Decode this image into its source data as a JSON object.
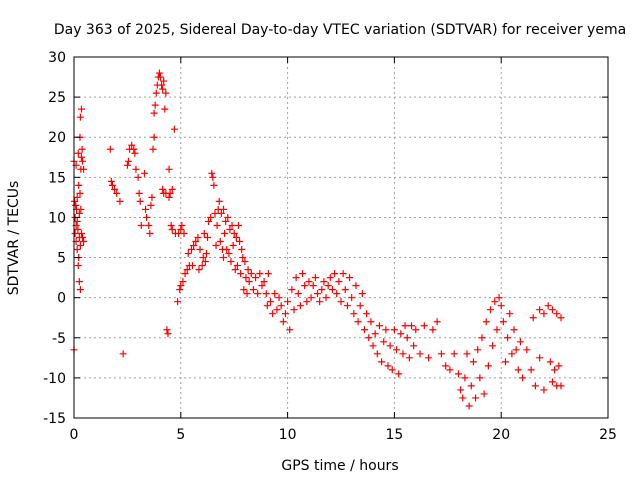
{
  "chart_data": {
    "type": "scatter",
    "title": "Day 363 of 2025, Sidereal Day-to-day VTEC variation (SDTVAR) for receiver yema",
    "xlabel": "GPS time / hours",
    "ylabel": "SDTVAR / TECUs",
    "xlim": [
      0,
      25
    ],
    "ylim": [
      -15,
      30
    ],
    "xticks": [
      0,
      5,
      10,
      15,
      20,
      25
    ],
    "yticks": [
      -15,
      -10,
      -5,
      0,
      5,
      10,
      15,
      20,
      25,
      30
    ],
    "grid": true,
    "marker": "+",
    "series_color": "#ff0000",
    "series": [
      {
        "name": "SDTVAR",
        "points": [
          [
            0.0,
            -6.5
          ],
          [
            0.0,
            17.0
          ],
          [
            0.03,
            12.0
          ],
          [
            0.05,
            10.0
          ],
          [
            0.05,
            8.0
          ],
          [
            0.08,
            11.5
          ],
          [
            0.1,
            9.0
          ],
          [
            0.1,
            7.0
          ],
          [
            0.1,
            16.5
          ],
          [
            0.12,
            11.0
          ],
          [
            0.15,
            6.0
          ],
          [
            0.15,
            12.5
          ],
          [
            0.15,
            9.5
          ],
          [
            0.18,
            8.5
          ],
          [
            0.2,
            4.0
          ],
          [
            0.2,
            18.0
          ],
          [
            0.22,
            14.0
          ],
          [
            0.22,
            5.0
          ],
          [
            0.25,
            10.5
          ],
          [
            0.25,
            7.5
          ],
          [
            0.25,
            2.0
          ],
          [
            0.28,
            20.0
          ],
          [
            0.28,
            13.0
          ],
          [
            0.3,
            6.5
          ],
          [
            0.3,
            1.0
          ],
          [
            0.3,
            22.5
          ],
          [
            0.32,
            16.0
          ],
          [
            0.32,
            11.0
          ],
          [
            0.35,
            17.5
          ],
          [
            0.35,
            8.0
          ],
          [
            0.35,
            23.5
          ],
          [
            0.38,
            18.5
          ],
          [
            0.4,
            17.0
          ],
          [
            0.4,
            7.5
          ],
          [
            0.45,
            16.0
          ],
          [
            0.45,
            7.0
          ],
          [
            1.7,
            18.5
          ],
          [
            1.75,
            14.5
          ],
          [
            1.8,
            14.0
          ],
          [
            1.9,
            13.5
          ],
          [
            2.0,
            13.0
          ],
          [
            2.15,
            12.0
          ],
          [
            2.3,
            -7.0
          ],
          [
            2.5,
            16.5
          ],
          [
            2.55,
            17.0
          ],
          [
            2.6,
            18.5
          ],
          [
            2.7,
            19.0
          ],
          [
            2.8,
            18.5
          ],
          [
            2.85,
            18.0
          ],
          [
            2.9,
            16.0
          ],
          [
            3.0,
            15.0
          ],
          [
            3.05,
            13.0
          ],
          [
            3.1,
            12.0
          ],
          [
            3.15,
            9.0
          ],
          [
            3.3,
            15.5
          ],
          [
            3.35,
            11.0
          ],
          [
            3.4,
            10.0
          ],
          [
            3.5,
            9.0
          ],
          [
            3.55,
            8.0
          ],
          [
            3.6,
            11.5
          ],
          [
            3.65,
            12.5
          ],
          [
            3.7,
            18.5
          ],
          [
            3.75,
            20.0
          ],
          [
            3.75,
            23.0
          ],
          [
            3.8,
            24.0
          ],
          [
            3.85,
            25.5
          ],
          [
            3.9,
            26.5
          ],
          [
            3.95,
            27.5
          ],
          [
            4.0,
            28.0
          ],
          [
            4.05,
            27.5
          ],
          [
            4.1,
            26.5
          ],
          [
            4.15,
            26.0
          ],
          [
            4.15,
            13.5
          ],
          [
            4.2,
            27.0
          ],
          [
            4.2,
            13.0
          ],
          [
            4.25,
            23.5
          ],
          [
            4.3,
            25.5
          ],
          [
            4.3,
            13.0
          ],
          [
            4.35,
            -4.0
          ],
          [
            4.4,
            -4.5
          ],
          [
            4.45,
            16.0
          ],
          [
            4.45,
            12.5
          ],
          [
            4.5,
            13.0
          ],
          [
            4.55,
            9.0
          ],
          [
            4.6,
            8.5
          ],
          [
            4.6,
            13.5
          ],
          [
            4.7,
            21.0
          ],
          [
            4.75,
            8.0
          ],
          [
            4.85,
            -0.5
          ],
          [
            4.9,
            8.0
          ],
          [
            4.95,
            1.0
          ],
          [
            5.0,
            1.5
          ],
          [
            5.0,
            8.5
          ],
          [
            5.05,
            9.0
          ],
          [
            5.1,
            2.0
          ],
          [
            5.15,
            8.0
          ],
          [
            5.2,
            3.0
          ],
          [
            5.3,
            3.5
          ],
          [
            5.35,
            5.5
          ],
          [
            5.4,
            4.0
          ],
          [
            5.5,
            6.0
          ],
          [
            5.55,
            4.0
          ],
          [
            5.6,
            6.5
          ],
          [
            5.7,
            7.0
          ],
          [
            5.8,
            7.5
          ],
          [
            5.85,
            3.5
          ],
          [
            5.9,
            6.0
          ],
          [
            6.0,
            4.0
          ],
          [
            6.05,
            5.0
          ],
          [
            6.1,
            8.0
          ],
          [
            6.15,
            4.5
          ],
          [
            6.2,
            5.5
          ],
          [
            6.25,
            7.5
          ],
          [
            6.3,
            9.5
          ],
          [
            6.4,
            10.0
          ],
          [
            6.45,
            15.5
          ],
          [
            6.5,
            15.0
          ],
          [
            6.55,
            14.0
          ],
          [
            6.6,
            10.5
          ],
          [
            6.65,
            6.5
          ],
          [
            6.7,
            9.0
          ],
          [
            6.75,
            11.0
          ],
          [
            6.8,
            12.0
          ],
          [
            6.85,
            7.0
          ],
          [
            6.9,
            10.5
          ],
          [
            6.95,
            6.0
          ],
          [
            7.0,
            11.0
          ],
          [
            7.0,
            5.0
          ],
          [
            7.05,
            8.0
          ],
          [
            7.1,
            9.5
          ],
          [
            7.15,
            6.0
          ],
          [
            7.2,
            10.0
          ],
          [
            7.25,
            5.5
          ],
          [
            7.3,
            8.5
          ],
          [
            7.35,
            4.5
          ],
          [
            7.4,
            9.0
          ],
          [
            7.45,
            6.5
          ],
          [
            7.5,
            8.0
          ],
          [
            7.55,
            3.5
          ],
          [
            7.6,
            7.5
          ],
          [
            7.65,
            4.0
          ],
          [
            7.7,
            9.0
          ],
          [
            7.75,
            7.0
          ],
          [
            7.8,
            3.0
          ],
          [
            7.85,
            6.0
          ],
          [
            7.9,
            5.0
          ],
          [
            7.95,
            1.0
          ],
          [
            8.0,
            4.5
          ],
          [
            8.05,
            2.5
          ],
          [
            8.1,
            0.5
          ],
          [
            8.15,
            3.5
          ],
          [
            8.2,
            2.0
          ],
          [
            8.3,
            3.0
          ],
          [
            8.4,
            1.0
          ],
          [
            8.5,
            2.5
          ],
          [
            8.6,
            0.5
          ],
          [
            8.7,
            3.0
          ],
          [
            8.8,
            1.5
          ],
          [
            8.9,
            2.0
          ],
          [
            9.0,
            0.5
          ],
          [
            9.05,
            -1.0
          ],
          [
            9.1,
            3.0
          ],
          [
            9.2,
            -0.5
          ],
          [
            9.3,
            -2.0
          ],
          [
            9.4,
            0.5
          ],
          [
            9.5,
            -1.5
          ],
          [
            9.6,
            0.0
          ],
          [
            9.7,
            -1.0
          ],
          [
            9.8,
            -3.0
          ],
          [
            9.9,
            -2.0
          ],
          [
            10.0,
            -0.5
          ],
          [
            10.1,
            -4.0
          ],
          [
            10.2,
            1.0
          ],
          [
            10.3,
            -1.5
          ],
          [
            10.4,
            2.5
          ],
          [
            10.5,
            0.5
          ],
          [
            10.6,
            -1.0
          ],
          [
            10.7,
            3.0
          ],
          [
            10.8,
            1.5
          ],
          [
            10.9,
            -0.5
          ],
          [
            11.0,
            2.0
          ],
          [
            11.1,
            0.0
          ],
          [
            11.2,
            1.5
          ],
          [
            11.3,
            2.5
          ],
          [
            11.4,
            0.5
          ],
          [
            11.5,
            -0.5
          ],
          [
            11.6,
            1.0
          ],
          [
            11.7,
            2.0
          ],
          [
            11.8,
            0.0
          ],
          [
            11.9,
            1.5
          ],
          [
            12.0,
            2.5
          ],
          [
            12.1,
            1.0
          ],
          [
            12.2,
            3.0
          ],
          [
            12.3,
            0.5
          ],
          [
            12.4,
            2.0
          ],
          [
            12.5,
            -0.5
          ],
          [
            12.6,
            3.0
          ],
          [
            12.7,
            1.0
          ],
          [
            12.8,
            -1.0
          ],
          [
            12.9,
            2.5
          ],
          [
            13.0,
            0.0
          ],
          [
            13.1,
            -2.0
          ],
          [
            13.2,
            1.5
          ],
          [
            13.3,
            -3.0
          ],
          [
            13.4,
            -1.0
          ],
          [
            13.5,
            0.5
          ],
          [
            13.6,
            -4.0
          ],
          [
            13.7,
            -2.0
          ],
          [
            13.8,
            -5.0
          ],
          [
            13.9,
            -3.0
          ],
          [
            14.0,
            -6.0
          ],
          [
            14.1,
            -4.5
          ],
          [
            14.2,
            -7.0
          ],
          [
            14.3,
            -3.5
          ],
          [
            14.4,
            -8.0
          ],
          [
            14.5,
            -5.5
          ],
          [
            14.6,
            -4.0
          ],
          [
            14.7,
            -8.5
          ],
          [
            14.8,
            -6.0
          ],
          [
            14.9,
            -9.0
          ],
          [
            15.0,
            -4.0
          ],
          [
            15.1,
            -6.5
          ],
          [
            15.2,
            -9.5
          ],
          [
            15.3,
            -4.5
          ],
          [
            15.4,
            -7.0
          ],
          [
            15.5,
            -3.5
          ],
          [
            15.6,
            -5.0
          ],
          [
            15.7,
            -7.5
          ],
          [
            15.8,
            -3.5
          ],
          [
            15.9,
            -6.0
          ],
          [
            16.0,
            -4.0
          ],
          [
            16.2,
            -7.0
          ],
          [
            16.4,
            -3.5
          ],
          [
            16.6,
            -7.5
          ],
          [
            16.8,
            -4.0
          ],
          [
            17.0,
            -3.0
          ],
          [
            17.2,
            -7.0
          ],
          [
            17.4,
            -8.5
          ],
          [
            17.6,
            -9.0
          ],
          [
            17.8,
            -7.0
          ],
          [
            18.0,
            -9.5
          ],
          [
            18.1,
            -11.5
          ],
          [
            18.2,
            -12.5
          ],
          [
            18.3,
            -10.0
          ],
          [
            18.4,
            -7.0
          ],
          [
            18.5,
            -13.5
          ],
          [
            18.6,
            -11.0
          ],
          [
            18.7,
            -8.0
          ],
          [
            18.8,
            -12.5
          ],
          [
            18.9,
            -6.5
          ],
          [
            19.0,
            -10.0
          ],
          [
            19.1,
            -5.0
          ],
          [
            19.2,
            -12.0
          ],
          [
            19.3,
            -3.0
          ],
          [
            19.4,
            -8.5
          ],
          [
            19.5,
            -1.5
          ],
          [
            19.6,
            -6.0
          ],
          [
            19.7,
            -0.5
          ],
          [
            19.8,
            -4.0
          ],
          [
            19.9,
            0.0
          ],
          [
            20.0,
            -1.0
          ],
          [
            20.1,
            -3.0
          ],
          [
            20.2,
            -8.0
          ],
          [
            20.3,
            -5.0
          ],
          [
            20.4,
            -2.0
          ],
          [
            20.5,
            -7.0
          ],
          [
            20.6,
            -4.0
          ],
          [
            20.7,
            -6.5
          ],
          [
            20.8,
            -9.0
          ],
          [
            20.9,
            -5.5
          ],
          [
            21.0,
            -10.0
          ],
          [
            21.2,
            -6.5
          ],
          [
            21.4,
            -9.0
          ],
          [
            21.6,
            -11.0
          ],
          [
            21.8,
            -7.5
          ],
          [
            22.0,
            -11.5
          ],
          [
            21.5,
            -2.5
          ],
          [
            21.8,
            -1.5
          ],
          [
            22.0,
            -2.0
          ],
          [
            22.2,
            -1.0
          ],
          [
            22.4,
            -1.5
          ],
          [
            22.6,
            -2.0
          ],
          [
            22.8,
            -2.5
          ],
          [
            22.3,
            -8.0
          ],
          [
            22.5,
            -9.0
          ],
          [
            22.7,
            -8.5
          ],
          [
            22.4,
            -10.5
          ],
          [
            22.6,
            -11.0
          ],
          [
            22.8,
            -11.0
          ]
        ]
      }
    ]
  }
}
